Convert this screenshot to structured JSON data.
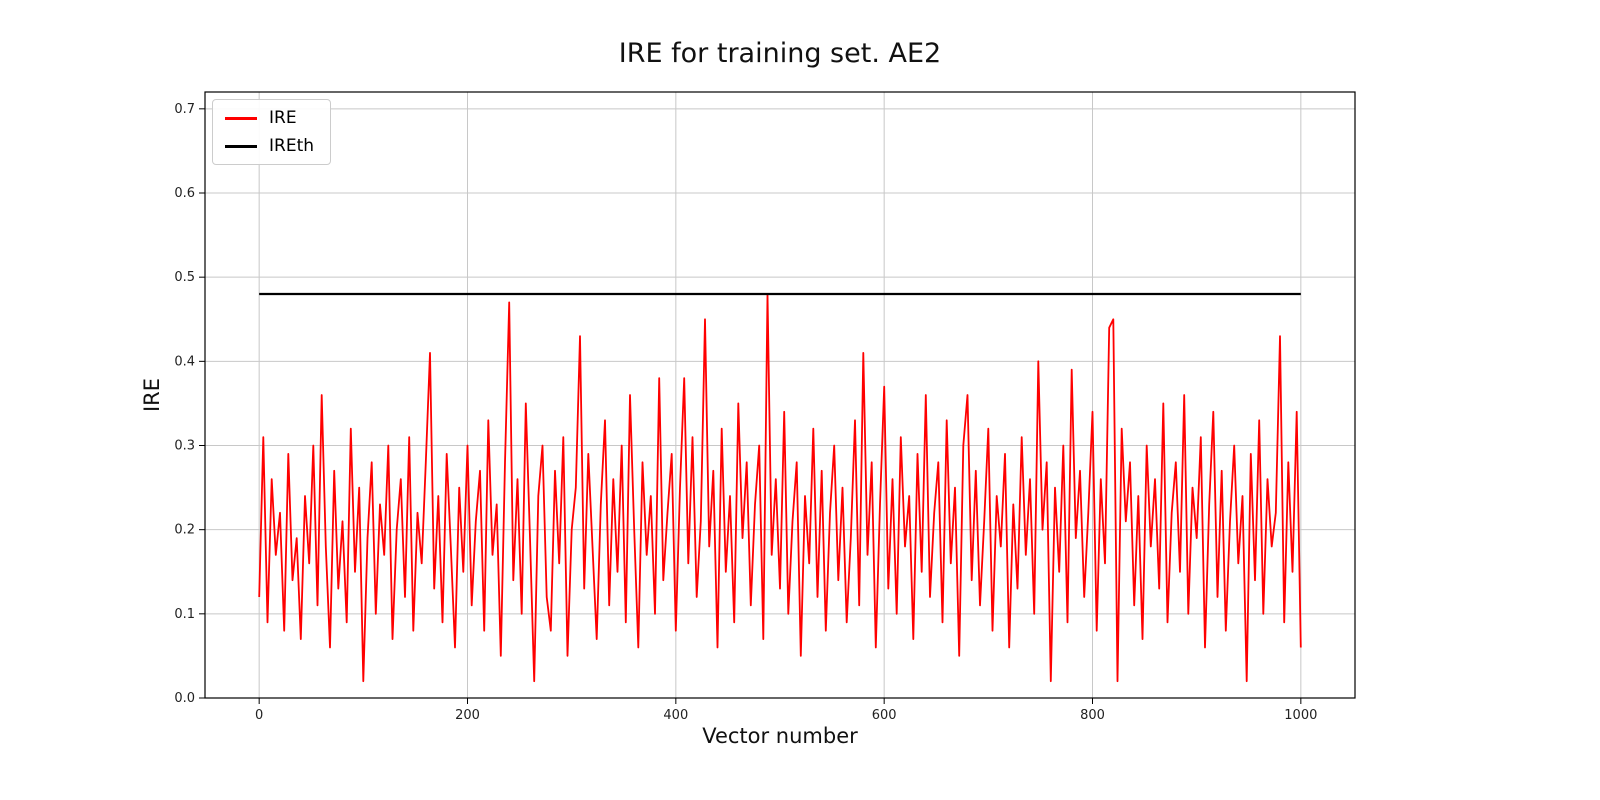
{
  "chart_data": {
    "type": "line",
    "title": "IRE for training set. AE2",
    "xlabel": "Vector number",
    "ylabel": "IRE",
    "xlim": [
      -52,
      1052
    ],
    "ylim": [
      0,
      0.72
    ],
    "xticks": [
      0,
      200,
      400,
      600,
      800,
      1000
    ],
    "yticks": [
      0.0,
      0.1,
      0.2,
      0.3,
      0.4,
      0.5,
      0.6,
      0.7
    ],
    "grid": true,
    "grid_color": "#c8c8c8",
    "spine_color": "#000000",
    "legend": {
      "position": "upper left",
      "entries": [
        {
          "label": "IRE",
          "color": "#ff0000"
        },
        {
          "label": "IREth",
          "color": "#000000"
        }
      ]
    },
    "series": [
      {
        "name": "IRE",
        "type": "line",
        "color": "#ff0000",
        "line_width": 1.8,
        "x_start": 0,
        "x_step": 4,
        "values": [
          0.12,
          0.31,
          0.09,
          0.26,
          0.17,
          0.22,
          0.08,
          0.29,
          0.14,
          0.19,
          0.07,
          0.24,
          0.16,
          0.3,
          0.11,
          0.36,
          0.18,
          0.06,
          0.27,
          0.13,
          0.21,
          0.09,
          0.32,
          0.15,
          0.25,
          0.02,
          0.19,
          0.28,
          0.1,
          0.23,
          0.17,
          0.3,
          0.07,
          0.2,
          0.26,
          0.12,
          0.31,
          0.08,
          0.22,
          0.16,
          0.28,
          0.41,
          0.13,
          0.24,
          0.09,
          0.29,
          0.18,
          0.06,
          0.25,
          0.15,
          0.3,
          0.11,
          0.21,
          0.27,
          0.08,
          0.33,
          0.17,
          0.23,
          0.05,
          0.28,
          0.47,
          0.14,
          0.26,
          0.1,
          0.35,
          0.19,
          0.02,
          0.24,
          0.3,
          0.12,
          0.08,
          0.27,
          0.16,
          0.31,
          0.05,
          0.2,
          0.25,
          0.43,
          0.13,
          0.29,
          0.18,
          0.07,
          0.23,
          0.33,
          0.11,
          0.26,
          0.15,
          0.3,
          0.09,
          0.36,
          0.2,
          0.06,
          0.28,
          0.17,
          0.24,
          0.1,
          0.38,
          0.14,
          0.22,
          0.29,
          0.08,
          0.25,
          0.38,
          0.16,
          0.31,
          0.12,
          0.21,
          0.45,
          0.18,
          0.27,
          0.06,
          0.32,
          0.15,
          0.24,
          0.09,
          0.35,
          0.19,
          0.28,
          0.11,
          0.23,
          0.3,
          0.07,
          0.48,
          0.17,
          0.26,
          0.13,
          0.34,
          0.1,
          0.21,
          0.28,
          0.05,
          0.24,
          0.16,
          0.32,
          0.12,
          0.27,
          0.08,
          0.22,
          0.3,
          0.14,
          0.25,
          0.09,
          0.19,
          0.33,
          0.11,
          0.41,
          0.17,
          0.28,
          0.06,
          0.23,
          0.37,
          0.13,
          0.26,
          0.1,
          0.31,
          0.18,
          0.24,
          0.07,
          0.29,
          0.15,
          0.36,
          0.12,
          0.22,
          0.28,
          0.09,
          0.33,
          0.16,
          0.25,
          0.05,
          0.3,
          0.36,
          0.14,
          0.27,
          0.11,
          0.21,
          0.32,
          0.08,
          0.24,
          0.18,
          0.29,
          0.06,
          0.23,
          0.13,
          0.31,
          0.17,
          0.26,
          0.1,
          0.4,
          0.2,
          0.28,
          0.02,
          0.25,
          0.15,
          0.3,
          0.09,
          0.39,
          0.19,
          0.27,
          0.12,
          0.22,
          0.34,
          0.08,
          0.26,
          0.16,
          0.44,
          0.45,
          0.02,
          0.32,
          0.21,
          0.28,
          0.11,
          0.24,
          0.07,
          0.3,
          0.18,
          0.26,
          0.13,
          0.35,
          0.09,
          0.22,
          0.28,
          0.15,
          0.36,
          0.1,
          0.25,
          0.19,
          0.31,
          0.06,
          0.23,
          0.34,
          0.12,
          0.27,
          0.08,
          0.21,
          0.3,
          0.16,
          0.24,
          0.02,
          0.29,
          0.14,
          0.33,
          0.1,
          0.26,
          0.18,
          0.22,
          0.43,
          0.09,
          0.28,
          0.15,
          0.34,
          0.06
        ]
      },
      {
        "name": "IREth",
        "type": "hline",
        "color": "#000000",
        "line_width": 2.2,
        "y": 0.48,
        "x_range": [
          0,
          1000
        ]
      }
    ]
  }
}
